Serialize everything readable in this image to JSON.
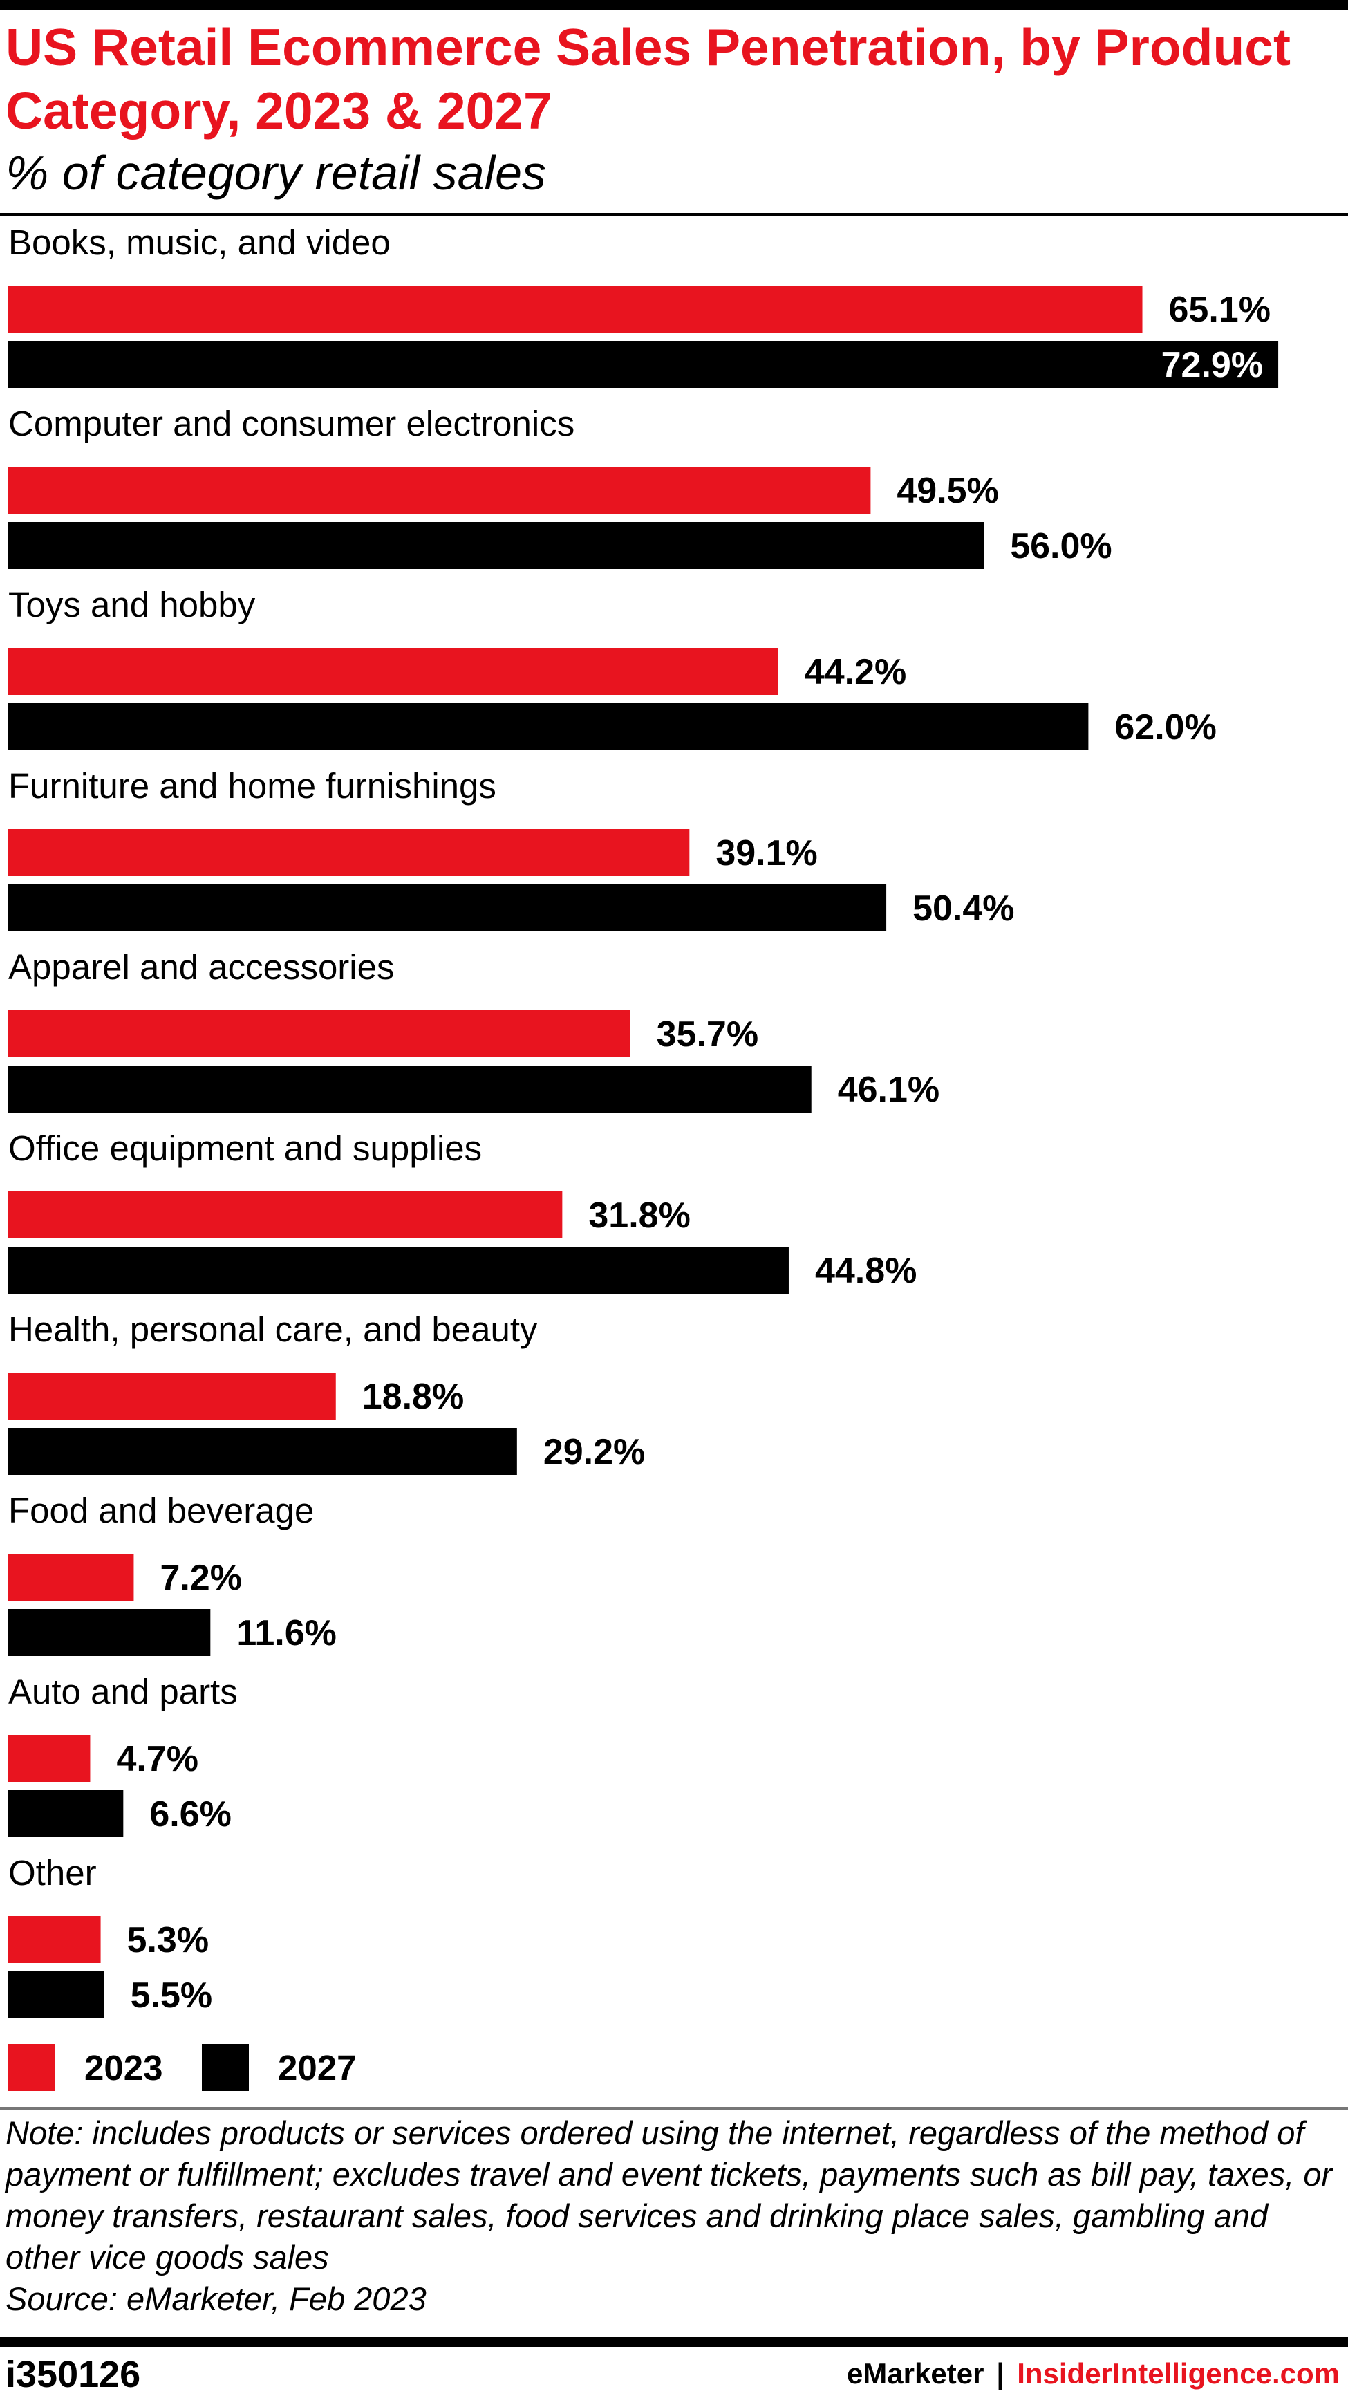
{
  "header": {
    "title": "US Retail Ecommerce Sales Penetration, by Product Category, 2023 & 2027",
    "subtitle": "% of category retail sales"
  },
  "colors": {
    "series_2023": "#e8141f",
    "series_2027": "#000000",
    "accent": "#e8141f"
  },
  "chart_data": {
    "type": "bar",
    "orientation": "horizontal",
    "categories": [
      "Books, music, and video",
      "Computer and consumer electronics",
      "Toys and hobby",
      "Furniture and home furnishings",
      "Apparel and accessories",
      "Office equipment and supplies",
      "Health, personal care, and beauty",
      "Food and beverage",
      "Auto and parts",
      "Other"
    ],
    "series": [
      {
        "name": "2023",
        "color": "#e8141f",
        "values": [
          65.1,
          49.5,
          44.2,
          39.1,
          35.7,
          31.8,
          18.8,
          7.2,
          4.7,
          5.3
        ],
        "labels": [
          "65.1%",
          "49.5%",
          "44.2%",
          "39.1%",
          "35.7%",
          "31.8%",
          "18.8%",
          "7.2%",
          "4.7%",
          "5.3%"
        ]
      },
      {
        "name": "2027",
        "color": "#000000",
        "values": [
          72.9,
          56.0,
          62.0,
          50.4,
          46.1,
          44.8,
          29.2,
          11.6,
          6.6,
          5.5
        ],
        "labels": [
          "72.9%",
          "56.0%",
          "62.0%",
          "50.4%",
          "46.1%",
          "44.8%",
          "29.2%",
          "11.6%",
          "6.6%",
          "5.5%"
        ]
      }
    ],
    "legend_position": "bottom-left",
    "grid": false,
    "xlim": [
      0,
      75
    ]
  },
  "note": {
    "text": "Note: includes products or services ordered using the internet, regardless of the method of payment or fulfillment; excludes travel and event tickets, payments such as bill pay, taxes, or money transfers, restaurant sales, food services and drinking place sales, gambling and other vice goods sales",
    "source": "Source: eMarketer, Feb 2023"
  },
  "footer": {
    "chart_id": "i350126",
    "brand": "eMarketer",
    "separator": "|",
    "site": "InsiderIntelligence.com"
  }
}
